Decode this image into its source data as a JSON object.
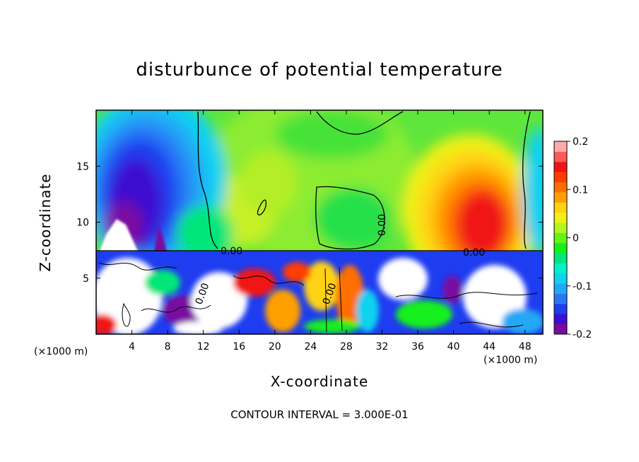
{
  "chart_data": {
    "type": "heatmap",
    "title": "disturbunce of potential temperature",
    "xlabel": "X-coordinate",
    "ylabel": "Z-coordinate",
    "x_unit_left": "(×1000 m)",
    "x_unit_right": "(×1000 m)",
    "xlim": [
      0,
      50
    ],
    "ylim": [
      0,
      20
    ],
    "x_ticks": [
      4,
      8,
      12,
      16,
      20,
      24,
      28,
      32,
      36,
      40,
      44,
      48
    ],
    "y_ticks": [
      5,
      10,
      15
    ],
    "colorbar": {
      "ticks": [
        "0.2",
        "0.1",
        "0",
        "-0.1",
        "-0.2"
      ],
      "tick_values": [
        0.2,
        0.1,
        0,
        -0.1,
        -0.2
      ],
      "range": [
        -0.2,
        0.2
      ],
      "colors": [
        "#7a0aa0",
        "#3c0fd0",
        "#1e3cf0",
        "#2878f5",
        "#20a8f5",
        "#10d2f0",
        "#00f0c8",
        "#00e67a",
        "#14f01e",
        "#64f514",
        "#b4f51e",
        "#f0f014",
        "#ffd214",
        "#ffa000",
        "#ff6e00",
        "#ff3c00",
        "#f01414",
        "#ff5a5a",
        "#ffaaaa"
      ]
    },
    "contour_labels": [
      "0.00",
      "0.00",
      "0.00",
      "0.00",
      "0.00"
    ],
    "contour_interval": "CONTOUR INTERVAL = 3.000E-01"
  }
}
